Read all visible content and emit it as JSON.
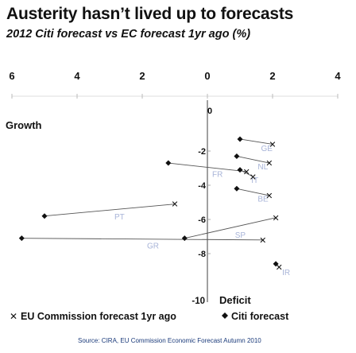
{
  "title": "Austerity hasn’t lived up to forecasts",
  "subtitle": "2012 Citi forecast vs EC forecast 1yr ago (%)",
  "source": "Source: CIRA, EU Commission Economic Forecast Autumn 2010",
  "chart_data": {
    "type": "scatter",
    "x_axis_label": "Deficit",
    "y_axis_label": "Growth",
    "x_ticks": [
      -6,
      -4,
      -2,
      0,
      2,
      4
    ],
    "x_tick_labels": [
      "6",
      "4",
      "2",
      "0",
      "2",
      "4"
    ],
    "y_ticks": [
      0,
      -2,
      -4,
      -6,
      -8,
      -10
    ],
    "y_tick_labels": [
      "0",
      "-2",
      "-4",
      "-6",
      "-8",
      "-10"
    ],
    "xlim": [
      -6,
      4
    ],
    "ylim": [
      -10,
      0
    ],
    "legend": {
      "position": "bottom",
      "entries": [
        {
          "marker": "X",
          "label": "EU Commission forecast 1yr ago"
        },
        {
          "marker": "◆",
          "label": "Citi forecast"
        }
      ]
    },
    "colors": {
      "axis": "#111111",
      "tick": "#888888",
      "connector": "#555555",
      "country_label": "#a8b4d8",
      "citi_marker": "#111111",
      "ec_marker": "#111111",
      "source": "#1a3a7a"
    },
    "countries": [
      {
        "label": "GE",
        "ec": [
          2.0,
          -1.6
        ],
        "citi": [
          1.0,
          -1.3
        ]
      },
      {
        "label": "NL",
        "ec": [
          1.9,
          -2.7
        ],
        "citi": [
          0.9,
          -2.3
        ]
      },
      {
        "label": "FR",
        "ec": [
          1.2,
          -3.2
        ],
        "citi": [
          -1.2,
          -2.7
        ]
      },
      {
        "label": "IT",
        "ec": [
          1.4,
          -3.5
        ],
        "citi": [
          1.0,
          -3.1
        ]
      },
      {
        "label": "BE",
        "ec": [
          1.9,
          -4.6
        ],
        "citi": [
          0.9,
          -4.2
        ]
      },
      {
        "label": "PT",
        "ec": [
          -1.0,
          -5.1
        ],
        "citi": [
          -5.0,
          -5.8
        ]
      },
      {
        "label": "SP",
        "ec": [
          2.1,
          -5.9
        ],
        "citi": [
          -0.7,
          -7.1
        ]
      },
      {
        "label": "GR",
        "ec": [
          1.7,
          -7.2
        ],
        "citi": [
          -5.7,
          -7.1
        ]
      },
      {
        "label": "IR",
        "ec": [
          2.2,
          -8.8
        ],
        "citi": [
          2.1,
          -8.6
        ]
      }
    ]
  }
}
